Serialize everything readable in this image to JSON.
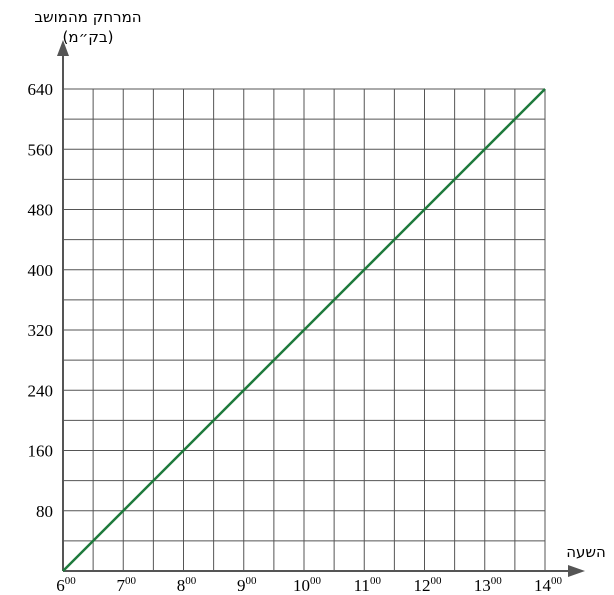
{
  "chart_data": {
    "type": "line",
    "ylabel_line1": "המרחק מהמושב",
    "ylabel_line2": "(בק״מ)",
    "xlabel": "השעה",
    "x_ticks": [
      {
        "hour": "6",
        "min": "00"
      },
      {
        "hour": "7",
        "min": "00"
      },
      {
        "hour": "8",
        "min": "00"
      },
      {
        "hour": "9",
        "min": "00"
      },
      {
        "hour": "10",
        "min": "00"
      },
      {
        "hour": "11",
        "min": "00"
      },
      {
        "hour": "12",
        "min": "00"
      },
      {
        "hour": "13",
        "min": "00"
      },
      {
        "hour": "14",
        "min": "00"
      }
    ],
    "y_ticks": [
      "80",
      "160",
      "240",
      "320",
      "400",
      "480",
      "560",
      "640"
    ],
    "xlim": [
      6,
      14
    ],
    "ylim": [
      0,
      640
    ],
    "x_minor_step": 0.5,
    "y_minor_step": 40,
    "grid": true,
    "series": [
      {
        "color": "#1e7a3c",
        "x": [
          6,
          14
        ],
        "y": [
          0,
          640
        ]
      }
    ],
    "grid_color": "#555555",
    "axis_color": "#555555"
  }
}
